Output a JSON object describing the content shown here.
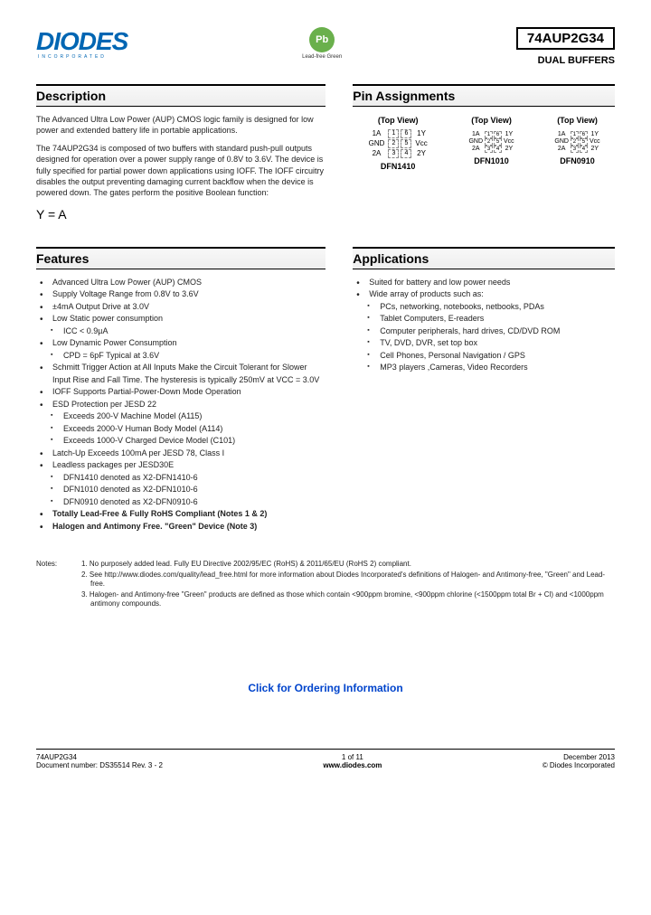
{
  "header": {
    "logo_text": "DIODES",
    "logo_sub": "INCORPORATED",
    "pb_text": "Pb",
    "pb_sub": "Lead-free Green",
    "part_number": "74AUP2G34",
    "part_subtitle": "DUAL BUFFERS"
  },
  "description": {
    "title": "Description",
    "p1": "The Advanced Ultra Low Power (AUP) CMOS logic family is designed for low power and extended battery life in portable applications.",
    "p2": "The 74AUP2G34 is composed of two buffers with standard push-pull outputs designed for operation over a power supply range of 0.8V to 3.6V.  The device is fully specified for partial power down applications using IOFF. The IOFF circuitry disables the output preventing damaging current backflow when the device is powered down.  The gates perform the positive Boolean function:",
    "formula": "Y = A"
  },
  "pin_assignments": {
    "title": "Pin Assignments",
    "top_view": "(Top View)",
    "packages": [
      {
        "name": "DFN1410",
        "size": "large",
        "pins": [
          [
            "1A",
            "1",
            "6",
            "1Y"
          ],
          [
            "GND",
            "2",
            "5",
            "Vcc"
          ],
          [
            "2A",
            "3",
            "4",
            "2Y"
          ]
        ]
      },
      {
        "name": "DFN1010",
        "size": "small",
        "pins": [
          [
            "1A",
            "1",
            "6",
            "1Y"
          ],
          [
            "GND",
            "2",
            "5",
            "Vcc"
          ],
          [
            "2A",
            "3",
            "4",
            "2Y"
          ]
        ]
      },
      {
        "name": "DFN0910",
        "size": "small",
        "pins": [
          [
            "1A",
            "1",
            "6",
            "1Y"
          ],
          [
            "GND",
            "2",
            "5",
            "Vcc"
          ],
          [
            "2A",
            "3",
            "4",
            "2Y"
          ]
        ]
      }
    ]
  },
  "features": {
    "title": "Features",
    "items": [
      "Advanced Ultra Low Power (AUP) CMOS",
      "Supply Voltage Range from 0.8V to 3.6V",
      "±4mA Output Drive at 3.0V",
      "Low Static power consumption",
      "Low Dynamic Power Consumption",
      "Schmitt Trigger Action at All Inputs Make the Circuit Tolerant for Slower Input Rise and Fall Time.  The hysteresis is typically 250mV at VCC = 3.0V",
      "IOFF Supports Partial-Power-Down Mode Operation",
      "ESD Protection per JESD 22",
      "Latch-Up Exceeds 100mA per JESD 78, Class I",
      "Leadless packages per JESD30E"
    ],
    "sub_static": [
      "ICC < 0.9µA"
    ],
    "sub_dynamic": [
      "CPD = 6pF Typical at 3.6V"
    ],
    "sub_esd": [
      "Exceeds 200-V Machine Model (A115)",
      "Exceeds 2000-V Human Body Model (A114)",
      "Exceeds 1000-V Charged Device Model (C101)"
    ],
    "sub_leadless": [
      "DFN1410 denoted as X2-DFN1410-6",
      "DFN1010 denoted as X2-DFN1010-6",
      "DFN0910 denoted as X2-DFN0910-6"
    ],
    "bold_items": [
      "Totally Lead-Free & Fully RoHS Compliant (Notes 1 & 2)",
      "Halogen and Antimony Free. \"Green\" Device (Note 3)"
    ]
  },
  "applications": {
    "title": "Applications",
    "items": [
      "Suited for battery and low power needs",
      "Wide array of products such as:"
    ],
    "sub_items": [
      "PCs, networking, notebooks, netbooks, PDAs",
      "Tablet Computers, E-readers",
      "Computer peripherals, hard drives, CD/DVD ROM",
      "TV, DVD, DVR, set top box",
      "Cell Phones, Personal Navigation / GPS",
      "MP3 players ,Cameras, Video Recorders"
    ]
  },
  "notes": {
    "label": "Notes:",
    "items": [
      "1. No purposely added lead. Fully EU Directive 2002/95/EC (RoHS) & 2011/65/EU (RoHS 2) compliant.",
      "2. See http://www.diodes.com/quality/lead_free.html for more information about Diodes Incorporated's definitions of Halogen- and Antimony-free, \"Green\" and Lead-free.",
      "3. Halogen- and Antimony-free \"Green\" products are defined as those which contain <900ppm bromine, <900ppm chlorine (<1500ppm total Br + Cl) and <1000ppm antimony compounds."
    ]
  },
  "order_link": "Click for Ordering Information",
  "footer": {
    "left_part": "74AUP2G34",
    "left_doc": "Document number: DS35514 Rev. 3 - 2",
    "center_page": "1 of 11",
    "center_url": "www.diodes.com",
    "right_date": "December 2013",
    "right_copy": "© Diodes Incorporated"
  },
  "colors": {
    "logo_blue": "#0066b3",
    "pb_green": "#6ab04c",
    "link_blue": "#0044cc",
    "text": "#222222",
    "border": "#000000"
  }
}
